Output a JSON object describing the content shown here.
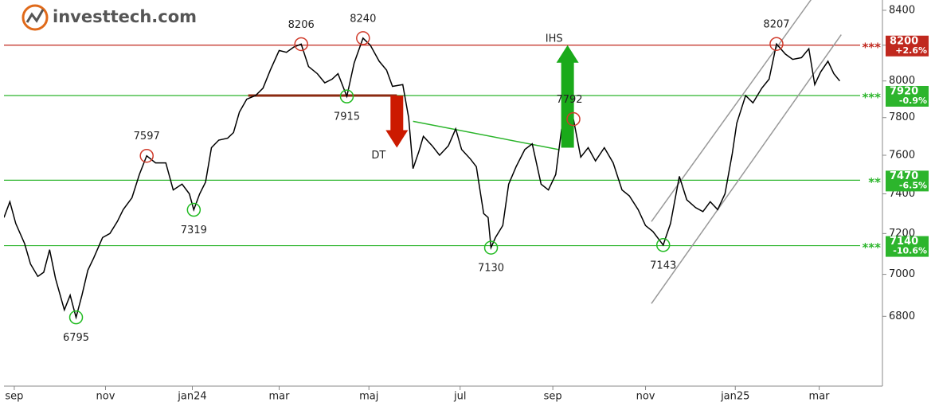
{
  "chart_data": {
    "type": "line",
    "logo": "investtech.com",
    "log_scale": true,
    "color": "#000000",
    "x": [
      -7,
      -3,
      1,
      7,
      11,
      16,
      20,
      24,
      28,
      34,
      38,
      42,
      46,
      50,
      54,
      60,
      65,
      70,
      74,
      80,
      85,
      90,
      96,
      103,
      108,
      114,
      119,
      122,
      126,
      130,
      134,
      139,
      145,
      149,
      153,
      158,
      164,
      169,
      174,
      180,
      185,
      190,
      195,
      200,
      206,
      211,
      216,
      220,
      226,
      231,
      237,
      242,
      248,
      253,
      257,
      264,
      268,
      271,
      275,
      278,
      284,
      289,
      295,
      300,
      304,
      310,
      314,
      319,
      322,
      324,
      327,
      332,
      336,
      341,
      347,
      352,
      358,
      363,
      368,
      372,
      376,
      380,
      385,
      390,
      395,
      401,
      407,
      413,
      418,
      424,
      429,
      434,
      441,
      446,
      452,
      457,
      463,
      468,
      473,
      478,
      483,
      488,
      491,
      497,
      502,
      508,
      513,
      518,
      524,
      529,
      535,
      540,
      544,
      548,
      553,
      557,
      561
    ],
    "values": [
      7280,
      7360,
      7250,
      7150,
      7050,
      6990,
      7010,
      7120,
      6980,
      6830,
      6900,
      6795,
      6900,
      7020,
      7080,
      7180,
      7200,
      7260,
      7320,
      7380,
      7500,
      7597,
      7560,
      7560,
      7420,
      7450,
      7400,
      7319,
      7400,
      7460,
      7640,
      7680,
      7690,
      7720,
      7830,
      7900,
      7920,
      7960,
      8060,
      8170,
      8160,
      8190,
      8206,
      8080,
      8040,
      7990,
      8010,
      8040,
      7915,
      8100,
      8240,
      8200,
      8110,
      8060,
      7970,
      7980,
      7800,
      7530,
      7620,
      7700,
      7650,
      7600,
      7650,
      7740,
      7630,
      7580,
      7540,
      7300,
      7280,
      7130,
      7180,
      7240,
      7450,
      7540,
      7630,
      7660,
      7450,
      7420,
      7500,
      7740,
      7660,
      7792,
      7590,
      7640,
      7570,
      7640,
      7560,
      7420,
      7390,
      7320,
      7240,
      7210,
      7143,
      7250,
      7490,
      7370,
      7330,
      7310,
      7360,
      7320,
      7400,
      7610,
      7770,
      7920,
      7880,
      7960,
      8010,
      8207,
      8150,
      8120,
      8130,
      8180,
      7980,
      8050,
      8110,
      8040,
      8000
    ],
    "xlim": [
      -7,
      590
    ],
    "xticks": [
      {
        "value": 0,
        "label": "sep"
      },
      {
        "value": 62,
        "label": "nov"
      },
      {
        "value": 121,
        "label": "jan24"
      },
      {
        "value": 180,
        "label": "mar"
      },
      {
        "value": 241,
        "label": "maj"
      },
      {
        "value": 303,
        "label": "jul"
      },
      {
        "value": 366,
        "label": "sep"
      },
      {
        "value": 429,
        "label": "nov"
      },
      {
        "value": 490,
        "label": "jan25"
      },
      {
        "value": 547,
        "label": "mar"
      }
    ],
    "ylim": [
      6480,
      8460
    ],
    "yticks": [
      6800,
      7000,
      7200,
      7400,
      7600,
      7800,
      8000,
      8200,
      8400
    ],
    "grid": false,
    "levels": [
      {
        "value": 8200,
        "change": "+2.6%",
        "stars": "***",
        "color": "#c0281e"
      },
      {
        "value": 7920,
        "change": "-0.9%",
        "stars": "***",
        "color": "#2cb52c"
      },
      {
        "value": 7470,
        "change": "-6.5%",
        "stars": "**",
        "color": "#2cb52c"
      },
      {
        "value": 7140,
        "change": "-10.6%",
        "stars": "***",
        "color": "#2cb52c"
      }
    ],
    "extremes": [
      {
        "x": 42,
        "value": 6795,
        "kind": "low"
      },
      {
        "x": 90,
        "value": 7597,
        "kind": "high"
      },
      {
        "x": 122,
        "value": 7319,
        "kind": "low"
      },
      {
        "x": 195,
        "value": 8206,
        "kind": "high"
      },
      {
        "x": 226,
        "value": 7915,
        "kind": "low"
      },
      {
        "x": 237,
        "value": 8240,
        "kind": "high"
      },
      {
        "x": 324,
        "value": 7130,
        "kind": "low"
      },
      {
        "x": 380,
        "value": 7792,
        "kind": "high"
      },
      {
        "x": 441,
        "value": 7143,
        "kind": "low"
      },
      {
        "x": 518,
        "value": 8207,
        "kind": "high"
      }
    ],
    "trendlines": [
      {
        "x": [
          159,
          260
        ],
        "y": [
          7920,
          7920
        ],
        "color": "#8b2a10"
      },
      {
        "x": [
          271,
          370
        ],
        "y": [
          7780,
          7630
        ],
        "color": "#2cb52c"
      },
      {
        "x": [
          433,
          543
        ],
        "y": [
          7260,
          8480
        ],
        "color": "#999999"
      },
      {
        "x": [
          433,
          562
        ],
        "y": [
          6860,
          8260
        ],
        "color": "#999999"
      }
    ],
    "signals": [
      {
        "text": "DT",
        "x": 260,
        "from": 7920,
        "to": 7640,
        "color": "#cc1a00"
      },
      {
        "text": "IHS",
        "x": 376,
        "from": 7640,
        "to": 8200,
        "color": "#1aaa1a"
      }
    ]
  }
}
